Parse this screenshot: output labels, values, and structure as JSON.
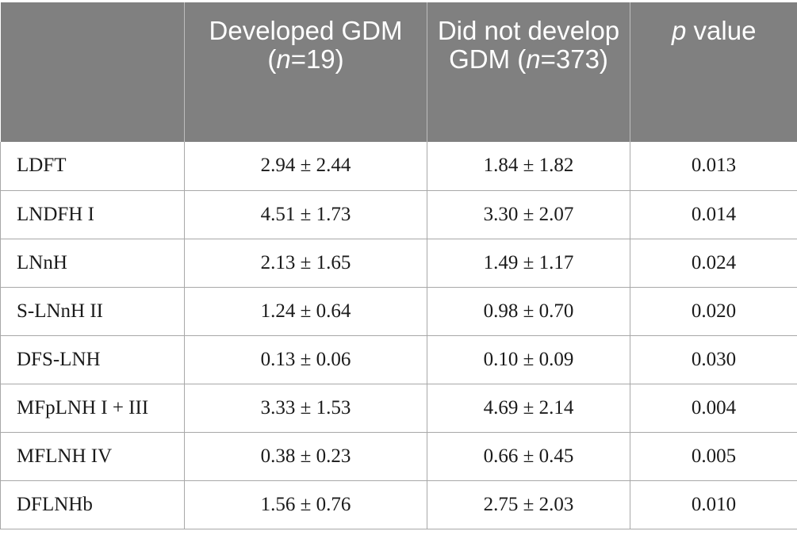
{
  "table": {
    "headers": {
      "col0": "",
      "col1": {
        "a": "Developed GDM (",
        "n": "n",
        "b": "=19)"
      },
      "col2": {
        "a": "Did not develop GDM (",
        "n": "n",
        "b": "=373)"
      },
      "col3": {
        "p": "p",
        "rest": " value"
      }
    },
    "rows": [
      {
        "label": "LDFT",
        "developed": "2.94 ± 2.44",
        "not_developed": "1.84 ± 1.82",
        "p": "0.013"
      },
      {
        "label": "LNDFH I",
        "developed": "4.51 ± 1.73",
        "not_developed": "3.30 ± 2.07",
        "p": "0.014"
      },
      {
        "label": "LNnH",
        "developed": "2.13 ± 1.65",
        "not_developed": "1.49 ± 1.17",
        "p": "0.024"
      },
      {
        "label": "S-LNnH II",
        "developed": "1.24 ± 0.64",
        "not_developed": "0.98 ± 0.70",
        "p": "0.020"
      },
      {
        "label": "DFS-LNH",
        "developed": "0.13 ± 0.06",
        "not_developed": "0.10 ± 0.09",
        "p": "0.030"
      },
      {
        "label": "MFpLNH I + III",
        "developed": "3.33 ± 1.53",
        "not_developed": "4.69 ± 2.14",
        "p": "0.004"
      },
      {
        "label": "MFLNH IV",
        "developed": "0.38 ± 0.23",
        "not_developed": "0.66 ± 0.45",
        "p": "0.005"
      },
      {
        "label": "DFLNHb",
        "developed": "1.56 ± 0.76",
        "not_developed": "2.75 ± 2.03",
        "p": "0.010"
      }
    ]
  }
}
